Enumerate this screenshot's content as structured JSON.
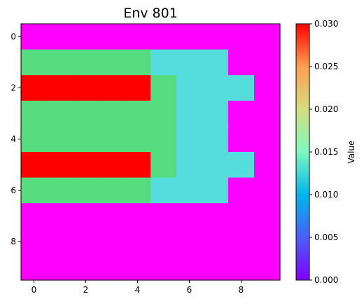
{
  "chart_data": {
    "type": "heatmap",
    "title": "Env 801",
    "colormap": "rainbow",
    "colorbar_label": "Value",
    "value_range": [
      0.0,
      0.03
    ],
    "colorbar_ticks": [
      "0.000",
      "0.005",
      "0.010",
      "0.015",
      "0.020",
      "0.025",
      "0.030"
    ],
    "x_ticks": [
      0,
      2,
      4,
      6,
      8
    ],
    "y_ticks": [
      0,
      2,
      4,
      6,
      8
    ],
    "grid": false,
    "colorbar_position": "right",
    "values": [
      [
        0,
        0,
        0,
        0,
        0,
        0,
        0,
        0,
        0,
        0
      ],
      [
        0.02,
        0.02,
        0.02,
        0.02,
        0.02,
        0.01,
        0.01,
        0.01,
        0,
        0
      ],
      [
        0.03,
        0.03,
        0.03,
        0.03,
        0.03,
        0.02,
        0.01,
        0.01,
        0.01,
        0
      ],
      [
        0.02,
        0.02,
        0.02,
        0.02,
        0.02,
        0.02,
        0.01,
        0.01,
        0,
        0
      ],
      [
        0.02,
        0.02,
        0.02,
        0.02,
        0.02,
        0.02,
        0.01,
        0.01,
        0,
        0
      ],
      [
        0.03,
        0.03,
        0.03,
        0.03,
        0.03,
        0.02,
        0.01,
        0.01,
        0.01,
        0
      ],
      [
        0.02,
        0.02,
        0.02,
        0.02,
        0.02,
        0.01,
        0.01,
        0.01,
        0,
        0
      ],
      [
        0,
        0,
        0,
        0,
        0,
        0,
        0,
        0,
        0,
        0
      ],
      [
        0,
        0,
        0,
        0,
        0,
        0,
        0,
        0,
        0,
        0
      ],
      [
        0,
        0,
        0,
        0,
        0,
        0,
        0,
        0,
        0,
        0
      ]
    ]
  }
}
